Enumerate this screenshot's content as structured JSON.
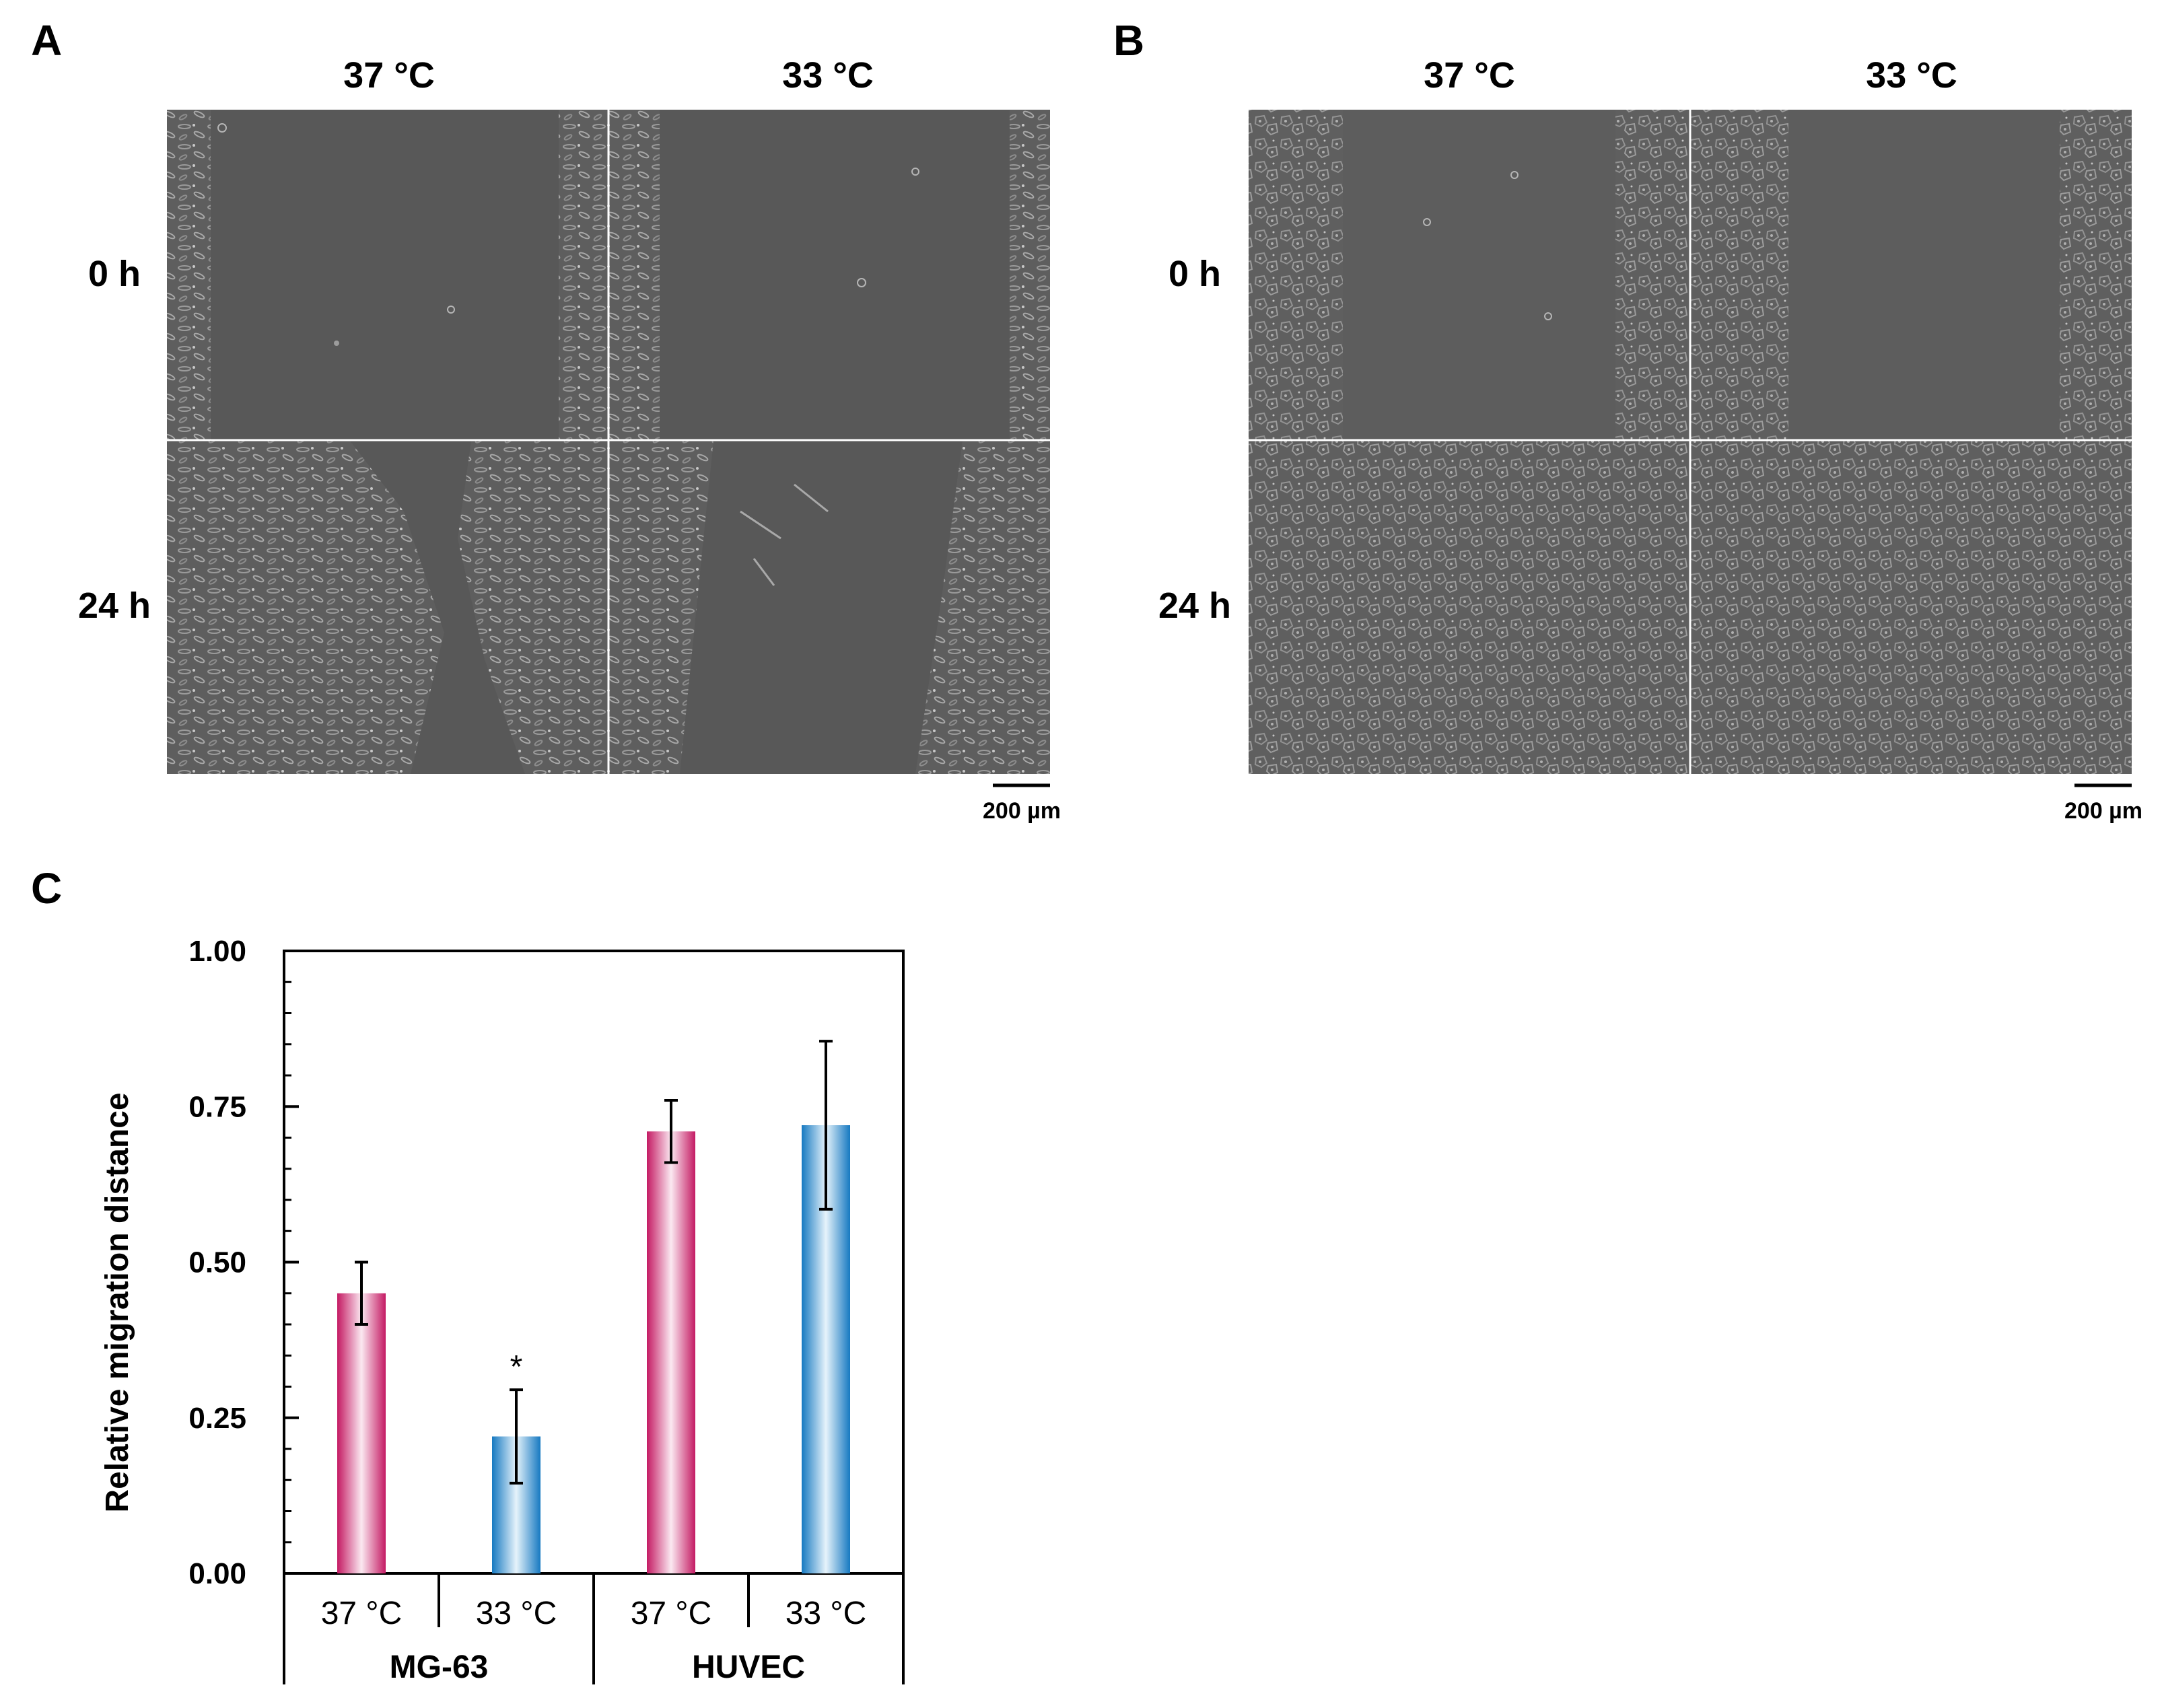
{
  "figure": {
    "panel_a": {
      "letter": "A",
      "columns": [
        "37 °C",
        "33 °C"
      ],
      "rows": [
        "0 h",
        "24 h"
      ],
      "scale_bar": "200 µm"
    },
    "panel_b": {
      "letter": "B",
      "columns": [
        "37 °C",
        "33 °C"
      ],
      "rows": [
        "0 h",
        "24 h"
      ],
      "scale_bar": "200 µm"
    },
    "panel_c": {
      "letter": "C"
    },
    "colors": {
      "warm": "#c41a63",
      "cool": "#1679c1",
      "micrograph": "#585858"
    }
  },
  "chart_data": {
    "type": "bar",
    "categories": [
      "37 °C",
      "33 °C",
      "37 °C",
      "33 °C"
    ],
    "groups": [
      {
        "label": "MG-63",
        "categories": [
          0,
          1
        ]
      },
      {
        "label": "HUVEC",
        "categories": [
          2,
          3
        ]
      }
    ],
    "values": [
      0.45,
      0.22,
      0.71,
      0.72
    ],
    "errors": [
      0.05,
      0.075,
      0.05,
      0.135
    ],
    "bar_colors": [
      "warm",
      "cool",
      "warm",
      "cool"
    ],
    "annotations": [
      {
        "category": 1,
        "text": "*"
      }
    ],
    "ylabel": "Relative migration distance",
    "ylim": [
      0,
      1
    ],
    "yticks": [
      "0.00",
      "0.25",
      "0.50",
      "0.75",
      "1.00"
    ],
    "ytick_values": [
      0,
      0.25,
      0.5,
      0.75,
      1.0
    ],
    "grid": false
  }
}
